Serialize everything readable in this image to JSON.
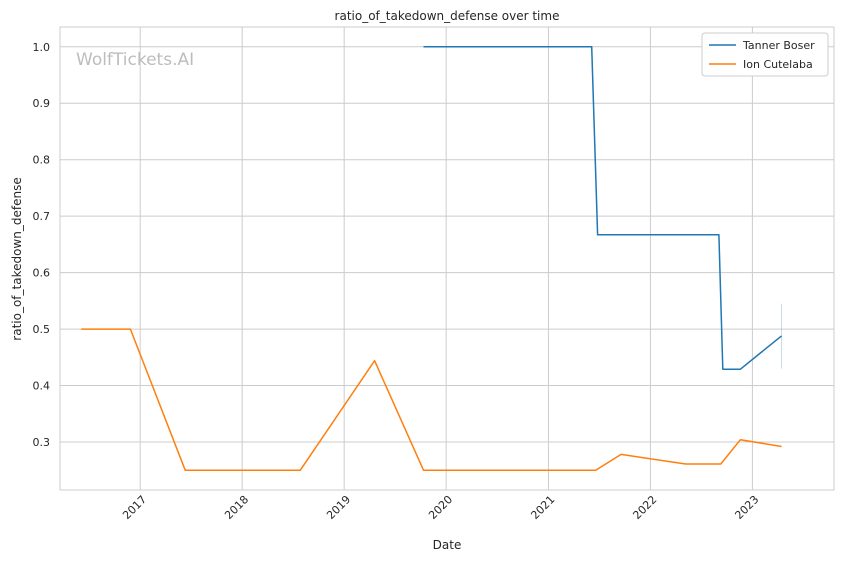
{
  "watermark": "WolfTickets.AI",
  "chart_data": {
    "type": "line",
    "title": "ratio_of_takedown_defense over time",
    "xlabel": "Date",
    "ylabel": "ratio_of_takedown_defense",
    "x_ticks": [
      "2017",
      "2018",
      "2019",
      "2020",
      "2021",
      "2022",
      "2023"
    ],
    "y_ticks": [
      "0.3",
      "0.4",
      "0.5",
      "0.6",
      "0.7",
      "0.8",
      "0.9",
      "1.0"
    ],
    "xlim": [
      "2016-03-20",
      "2023-10-20"
    ],
    "ylim": [
      0.215,
      1.035
    ],
    "grid": true,
    "legend_position": "top-right",
    "series": [
      {
        "name": "Tanner Boser",
        "color": "#1f77b4",
        "points": [
          [
            "2019-10-12",
            1.0
          ],
          [
            "2021-06-05",
            1.0
          ],
          [
            "2021-06-26",
            0.667
          ],
          [
            "2022-09-03",
            0.667
          ],
          [
            "2022-09-17",
            0.429
          ],
          [
            "2022-11-19",
            0.429
          ],
          [
            "2023-04-15",
            0.488
          ]
        ],
        "error_bar": {
          "x": "2023-04-15",
          "low": 0.43,
          "high": 0.545
        }
      },
      {
        "name": "Ion Cutelaba",
        "color": "#ff7f0e",
        "points": [
          [
            "2016-06-04",
            0.5
          ],
          [
            "2016-11-27",
            0.5
          ],
          [
            "2017-06-11",
            0.25
          ],
          [
            "2018-07-28",
            0.25
          ],
          [
            "2019-04-20",
            0.444
          ],
          [
            "2019-10-12",
            0.25
          ],
          [
            "2021-06-19",
            0.25
          ],
          [
            "2021-09-18",
            0.278
          ],
          [
            "2022-05-07",
            0.261
          ],
          [
            "2022-09-10",
            0.261
          ],
          [
            "2022-11-19",
            0.304
          ],
          [
            "2023-04-15",
            0.292
          ]
        ]
      }
    ]
  }
}
